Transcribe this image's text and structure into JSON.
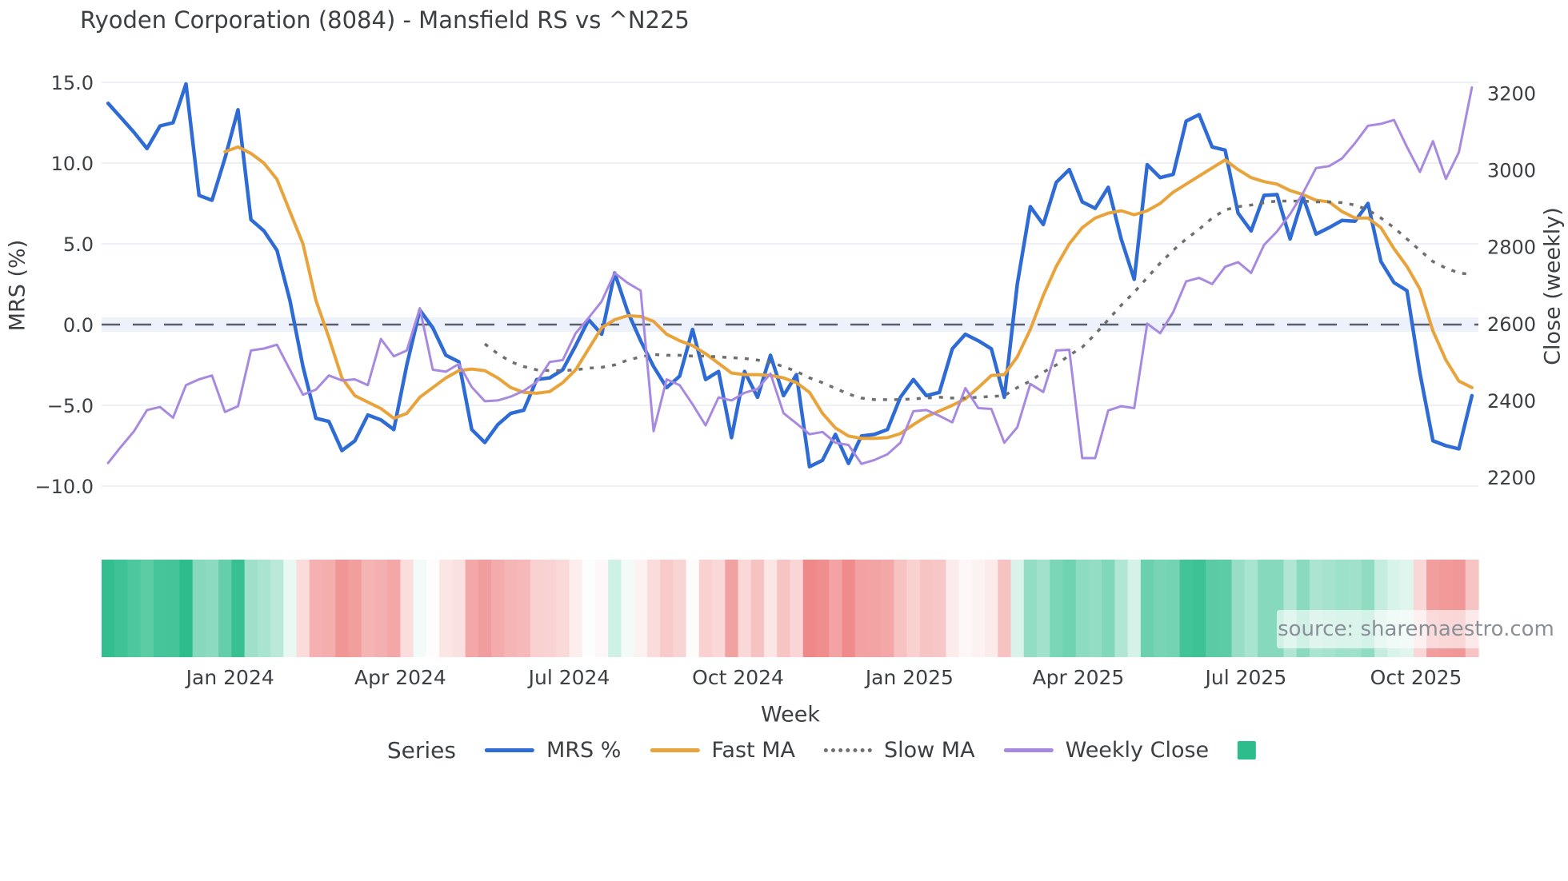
{
  "title": "Ryoden Corporation (8084) - Mansfield RS vs ^N225",
  "source_note": "source: sharemaestro.com",
  "colors": {
    "mrs_blue": "#2e6bd4",
    "fast_ma_orange": "#e9a33b",
    "slow_ma_gray": "#6f6f6f",
    "close_purple": "#a889e0",
    "zero_dash": "#596069",
    "zero_band": "#e9effa",
    "gridline": "#edf1f6",
    "tick_text": "#3c4043",
    "heat_positive": "#2dbd8c",
    "heat_negative": "#ee7f7f"
  },
  "legend": {
    "title": "Series",
    "items": [
      {
        "label": "MRS %",
        "swatch": "line",
        "color": "#2e6bd4"
      },
      {
        "label": "Fast MA",
        "swatch": "line",
        "color": "#e9a33b"
      },
      {
        "label": "Slow MA",
        "swatch": "dotted",
        "color": "#6f6f6f"
      },
      {
        "label": "Weekly Close",
        "swatch": "line",
        "color": "#a889e0"
      },
      {
        "label": "",
        "swatch": "square",
        "color": "#2dbd8c"
      }
    ]
  },
  "chart_data": {
    "type": "line",
    "title": "Ryoden Corporation (8084) - Mansfield RS vs ^N225",
    "xlabel": "Week",
    "x_ticks": [
      {
        "label": "Jan 2024",
        "week_index": 9.4
      },
      {
        "label": "Apr 2024",
        "week_index": 22.5
      },
      {
        "label": "Jul 2024",
        "week_index": 35.5
      },
      {
        "label": "Oct 2024",
        "week_index": 48.5
      },
      {
        "label": "Jan 2025",
        "week_index": 61.7
      },
      {
        "label": "Apr 2025",
        "week_index": 74.7
      },
      {
        "label": "Jul 2025",
        "week_index": 87.6
      },
      {
        "label": "Oct 2025",
        "week_index": 100.7
      }
    ],
    "y_left": {
      "label": "MRS (%)",
      "tick_labels": [
        "15.0",
        "10.0",
        "5.0",
        "0.0",
        "−5.0",
        "−10.0"
      ],
      "tick_values": [
        15,
        10,
        5,
        0,
        -5,
        -10
      ],
      "range": [
        -11.2,
        15.9
      ]
    },
    "y_right": {
      "label": "Close (weekly)",
      "tick_labels": [
        "3200",
        "3000",
        "2800",
        "2600",
        "2400",
        "2200"
      ],
      "tick_values": [
        3200,
        3000,
        2800,
        2600,
        2400,
        2200
      ],
      "range": [
        2160,
        3230
      ]
    },
    "zero_line": {
      "value": 0,
      "axis": "left",
      "style": "dashed"
    },
    "legend_position": "bottom",
    "grid": true,
    "n_weeks": 106,
    "series": [
      {
        "name": "MRS %",
        "axis": "left",
        "color": "#2e6bd4",
        "style": "solid",
        "width": 4.5,
        "values": [
          13.7,
          12.8,
          11.9,
          10.9,
          12.3,
          12.5,
          14.9,
          8.0,
          7.7,
          10.3,
          13.3,
          6.5,
          5.8,
          4.6,
          1.5,
          -2.6,
          -5.8,
          -6.0,
          -7.8,
          -7.2,
          -5.6,
          -5.9,
          -6.5,
          -2.5,
          0.9,
          -0.2,
          -1.9,
          -2.3,
          -6.5,
          -7.3,
          -6.2,
          -5.5,
          -5.3,
          -3.4,
          -3.3,
          -2.8,
          -1.3,
          0.3,
          -0.6,
          3.2,
          0.8,
          -1.0,
          -2.6,
          -3.9,
          -3.2,
          -0.3,
          -3.4,
          -2.9,
          -7.0,
          -2.9,
          -4.5,
          -1.9,
          -4.4,
          -3.1,
          -8.8,
          -8.4,
          -6.8,
          -8.6,
          -6.9,
          -6.8,
          -6.5,
          -4.5,
          -3.4,
          -4.4,
          -4.2,
          -1.5,
          -0.6,
          -1.0,
          -1.5,
          -4.5,
          2.5,
          7.3,
          6.2,
          8.8,
          9.6,
          7.6,
          7.2,
          8.5,
          5.3,
          2.8,
          9.9,
          9.1,
          9.3,
          12.6,
          13.0,
          11.0,
          10.8,
          6.9,
          5.8,
          8.0,
          8.05,
          5.3,
          7.9,
          5.6,
          6.0,
          6.45,
          6.4,
          7.5,
          3.9,
          2.6,
          2.1,
          -3.0,
          -7.2,
          -7.5,
          -7.7,
          -4.4
        ]
      },
      {
        "name": "Fast MA",
        "axis": "left",
        "color": "#e9a33b",
        "style": "solid",
        "width": 4,
        "values": [
          null,
          null,
          null,
          null,
          null,
          null,
          null,
          null,
          null,
          10.7,
          11.0,
          10.6,
          10.0,
          9.0,
          7.0,
          5.0,
          1.5,
          -0.8,
          -3.3,
          -4.4,
          -4.8,
          -5.2,
          -5.8,
          -5.5,
          -4.5,
          -3.9,
          -3.3,
          -2.85,
          -2.75,
          -2.85,
          -3.3,
          -3.9,
          -4.2,
          -4.25,
          -4.15,
          -3.6,
          -2.8,
          -1.5,
          -0.2,
          0.3,
          0.55,
          0.5,
          0.2,
          -0.6,
          -1.0,
          -1.3,
          -1.8,
          -2.4,
          -3.0,
          -3.1,
          -3.1,
          -3.15,
          -3.3,
          -3.6,
          -4.2,
          -5.5,
          -6.4,
          -6.9,
          -7.05,
          -7.05,
          -7.0,
          -6.75,
          -6.2,
          -5.7,
          -5.35,
          -5.0,
          -4.6,
          -3.9,
          -3.15,
          -3.1,
          -2.0,
          -0.3,
          1.8,
          3.6,
          5.0,
          6.0,
          6.6,
          6.9,
          7.05,
          6.8,
          7.05,
          7.5,
          8.2,
          8.7,
          9.2,
          9.7,
          10.2,
          9.6,
          9.1,
          8.85,
          8.7,
          8.3,
          8.05,
          7.7,
          7.6,
          7.0,
          6.6,
          6.6,
          6.0,
          4.7,
          3.6,
          2.2,
          -0.4,
          -2.2,
          -3.5,
          -3.9
        ]
      },
      {
        "name": "Slow MA",
        "axis": "left",
        "color": "#6f6f6f",
        "style": "dotted",
        "width": 3.5,
        "values": [
          null,
          null,
          null,
          null,
          null,
          null,
          null,
          null,
          null,
          null,
          null,
          null,
          null,
          null,
          null,
          null,
          null,
          null,
          null,
          null,
          null,
          null,
          null,
          null,
          null,
          null,
          null,
          null,
          null,
          -1.2,
          -1.8,
          -2.3,
          -2.6,
          -2.8,
          -2.85,
          -2.85,
          -2.8,
          -2.7,
          -2.65,
          -2.5,
          -2.2,
          -2.0,
          -1.85,
          -1.9,
          -1.9,
          -1.95,
          -1.95,
          -2.0,
          -2.05,
          -2.1,
          -2.2,
          -2.35,
          -2.6,
          -2.9,
          -3.3,
          -3.6,
          -3.95,
          -4.3,
          -4.55,
          -4.65,
          -4.65,
          -4.65,
          -4.6,
          -4.55,
          -4.5,
          -4.55,
          -4.55,
          -4.5,
          -4.45,
          -4.4,
          -3.9,
          -3.5,
          -2.95,
          -2.5,
          -1.9,
          -1.4,
          -0.6,
          0.3,
          1.2,
          2.0,
          2.9,
          3.8,
          4.6,
          5.3,
          5.9,
          6.6,
          7.1,
          7.3,
          7.4,
          7.55,
          7.65,
          7.65,
          7.65,
          7.6,
          7.6,
          7.55,
          7.4,
          7.1,
          6.6,
          6.0,
          5.3,
          4.6,
          3.9,
          3.5,
          3.2,
          3.1
        ]
      },
      {
        "name": "Weekly Close",
        "axis": "right",
        "color": "#a889e0",
        "style": "solid",
        "width": 3,
        "values": [
          2237,
          2280,
          2320,
          2375,
          2383,
          2355,
          2440,
          2455,
          2465,
          2370,
          2385,
          2530,
          2535,
          2545,
          2480,
          2415,
          2428,
          2465,
          2452,
          2455,
          2440,
          2560,
          2515,
          2530,
          2640,
          2480,
          2475,
          2495,
          2435,
          2398,
          2400,
          2410,
          2425,
          2448,
          2500,
          2505,
          2575,
          2615,
          2658,
          2732,
          2706,
          2686,
          2320,
          2455,
          2440,
          2390,
          2335,
          2408,
          2400,
          2420,
          2430,
          2470,
          2367,
          2340,
          2312,
          2318,
          2290,
          2284,
          2235,
          2245,
          2260,
          2290,
          2372,
          2375,
          2360,
          2343,
          2432,
          2380,
          2378,
          2290,
          2330,
          2443,
          2422,
          2530,
          2532,
          2250,
          2250,
          2374,
          2385,
          2380,
          2600,
          2575,
          2630,
          2710,
          2719,
          2703,
          2748,
          2760,
          2732,
          2805,
          2840,
          2885,
          2940,
          3005,
          3010,
          3030,
          3070,
          3115,
          3120,
          3130,
          3060,
          2995,
          3075,
          2977,
          3046,
          3215
        ]
      }
    ],
    "heatmap": {
      "basis": "MRS %",
      "positive_color": "#2dbd8c",
      "negative_color": "#ee7f7f",
      "positive_saturation_at": 14,
      "negative_saturation_at": 9.5
    }
  }
}
